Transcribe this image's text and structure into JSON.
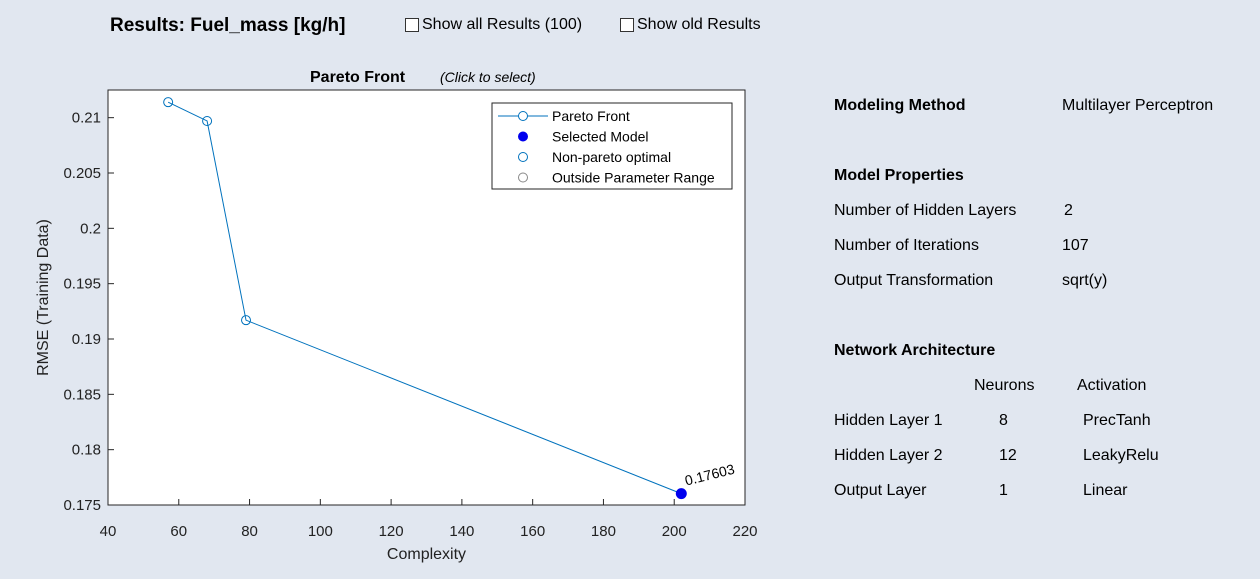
{
  "header": {
    "title": "Results: Fuel_mass [kg/h]",
    "show_all_label": "Show all Results (100)",
    "show_old_label": "Show old Results"
  },
  "chart_data": {
    "type": "scatter",
    "title": "Pareto Front",
    "subtitle": "(Click to select)",
    "xlabel": "Complexity",
    "ylabel": "RMSE (Training Data)",
    "xlim": [
      40,
      220
    ],
    "ylim": [
      0.175,
      0.2125
    ],
    "xticks": [
      40,
      60,
      80,
      100,
      120,
      140,
      160,
      180,
      200,
      220
    ],
    "yticks": [
      0.175,
      0.18,
      0.185,
      0.19,
      0.195,
      0.2,
      0.205,
      0.21
    ],
    "ytick_labels": [
      "0.175",
      "0.18",
      "0.185",
      "0.19",
      "0.195",
      "0.2",
      "0.205",
      "0.21"
    ],
    "grid": false,
    "legend_position": "top-right",
    "series": [
      {
        "name": "Pareto Front",
        "x": [
          57,
          68,
          79,
          202
        ],
        "y": [
          0.2114,
          0.2097,
          0.1917,
          0.17603
        ],
        "color": "#0072bd"
      },
      {
        "name": "Selected Model",
        "x": [
          202
        ],
        "y": [
          0.17603
        ],
        "color": "#0000ee"
      },
      {
        "name": "Non-pareto optimal",
        "x": [],
        "y": [],
        "color": "#0072bd"
      },
      {
        "name": "Outside Parameter Range",
        "x": [],
        "y": [],
        "color": "#888888"
      }
    ],
    "annotation": {
      "x": 202,
      "y": 0.17603,
      "text": "0.17603"
    }
  },
  "model": {
    "method_label": "Modeling Method",
    "method_value": "Multilayer Perceptron",
    "properties_heading": "Model Properties",
    "properties": [
      {
        "label": "Number of Hidden Layers",
        "value": "2"
      },
      {
        "label": "Number of Iterations",
        "value": "107"
      },
      {
        "label": "Output Transformation",
        "value": "sqrt(y)"
      }
    ],
    "architecture_heading": "Network Architecture",
    "arch_columns": [
      "Neurons",
      "Activation"
    ],
    "arch_rows": [
      {
        "layer": "Hidden Layer 1",
        "neurons": "8",
        "activation": "PrecTanh"
      },
      {
        "layer": "Hidden Layer 2",
        "neurons": "12",
        "activation": "LeakyRelu"
      },
      {
        "layer": "Output Layer",
        "neurons": "1",
        "activation": "Linear"
      }
    ]
  }
}
